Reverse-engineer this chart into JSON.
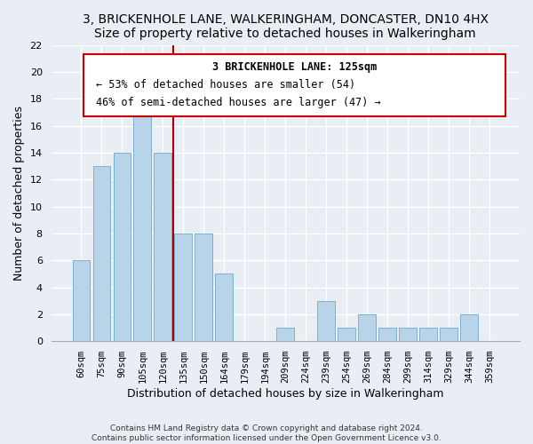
{
  "title": "3, BRICKENHOLE LANE, WALKERINGHAM, DONCASTER, DN10 4HX",
  "subtitle": "Size of property relative to detached houses in Walkeringham",
  "xlabel": "Distribution of detached houses by size in Walkeringham",
  "ylabel": "Number of detached properties",
  "bar_labels": [
    "60sqm",
    "75sqm",
    "90sqm",
    "105sqm",
    "120sqm",
    "135sqm",
    "150sqm",
    "164sqm",
    "179sqm",
    "194sqm",
    "209sqm",
    "224sqm",
    "239sqm",
    "254sqm",
    "269sqm",
    "284sqm",
    "299sqm",
    "314sqm",
    "329sqm",
    "344sqm",
    "359sqm"
  ],
  "bar_values": [
    6,
    13,
    14,
    18,
    14,
    8,
    8,
    5,
    0,
    0,
    1,
    0,
    3,
    1,
    2,
    1,
    1,
    1,
    1,
    2,
    0
  ],
  "bar_color": "#b8d4e8",
  "bar_edge_color": "#6fa8d0",
  "vline_index": 4,
  "ylim": [
    0,
    22
  ],
  "yticks": [
    0,
    2,
    4,
    6,
    8,
    10,
    12,
    14,
    16,
    18,
    20,
    22
  ],
  "annotation_title": "3 BRICKENHOLE LANE: 125sqm",
  "annotation_line1": "← 53% of detached houses are smaller (54)",
  "annotation_line2": "46% of semi-detached houses are larger (47) →",
  "vline_color": "#aa0000",
  "annotation_box_facecolor": "#ffffff",
  "annotation_box_edgecolor": "#cc0000",
  "footer_line1": "Contains HM Land Registry data © Crown copyright and database right 2024.",
  "footer_line2": "Contains public sector information licensed under the Open Government Licence v3.0.",
  "background_color": "#e8eef4",
  "grid_color": "#ffffff",
  "title_fontsize": 10,
  "axis_label_fontsize": 9,
  "tick_fontsize": 7.5,
  "footer_fontsize": 6.5,
  "ann_fontsize": 8.5
}
